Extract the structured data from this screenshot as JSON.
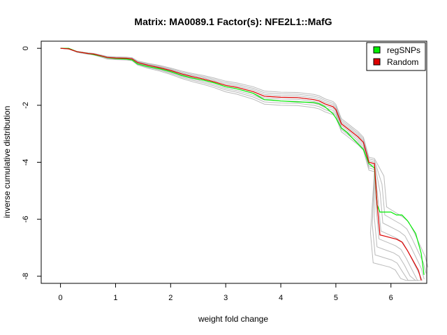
{
  "chart_data": {
    "type": "line",
    "title": "Matrix: MA0089.1 Factor(s): NFE2L1::MafG",
    "xlabel": "weight fold change",
    "ylabel": "inverse cumulative distribution",
    "xlim": [
      -0.35,
      6.65
    ],
    "ylim": [
      -8.25,
      0.25
    ],
    "xticks": [
      0,
      1,
      2,
      3,
      4,
      5,
      6
    ],
    "yticks": [
      0,
      -2,
      -4,
      -6,
      -8
    ],
    "legend": {
      "position": "top-right",
      "entries": [
        {
          "label": "regSNPs",
          "color": "#00ee00"
        },
        {
          "label": "Random",
          "color": "#dd0000"
        }
      ]
    },
    "band_color": "#bbbbbb",
    "series": [
      {
        "name": "regSNPs",
        "color": "#00ee00",
        "points": [
          [
            0,
            0
          ],
          [
            0.15,
            0
          ],
          [
            0.3,
            -0.12
          ],
          [
            0.5,
            -0.18
          ],
          [
            0.6,
            -0.22
          ],
          [
            0.75,
            -0.28
          ],
          [
            0.85,
            -0.33
          ],
          [
            1.0,
            -0.36
          ],
          [
            1.2,
            -0.38
          ],
          [
            1.3,
            -0.41
          ],
          [
            1.4,
            -0.55
          ],
          [
            1.6,
            -0.65
          ],
          [
            1.8,
            -0.72
          ],
          [
            2.0,
            -0.82
          ],
          [
            2.2,
            -0.95
          ],
          [
            2.4,
            -1.05
          ],
          [
            2.6,
            -1.12
          ],
          [
            2.8,
            -1.22
          ],
          [
            3.0,
            -1.35
          ],
          [
            3.2,
            -1.42
          ],
          [
            3.5,
            -1.58
          ],
          [
            3.7,
            -1.8
          ],
          [
            3.85,
            -1.82
          ],
          [
            4.0,
            -1.85
          ],
          [
            4.3,
            -1.88
          ],
          [
            4.6,
            -1.9
          ],
          [
            4.7,
            -1.95
          ],
          [
            4.8,
            -2.05
          ],
          [
            4.95,
            -2.3
          ],
          [
            5.0,
            -2.45
          ],
          [
            5.1,
            -2.8
          ],
          [
            5.2,
            -2.95
          ],
          [
            5.3,
            -3.15
          ],
          [
            5.4,
            -3.35
          ],
          [
            5.5,
            -3.55
          ],
          [
            5.6,
            -4.05
          ],
          [
            5.7,
            -4.2
          ],
          [
            5.75,
            -5.5
          ],
          [
            5.8,
            -5.75
          ],
          [
            5.9,
            -5.75
          ],
          [
            6.0,
            -5.75
          ],
          [
            6.1,
            -5.85
          ],
          [
            6.2,
            -5.85
          ],
          [
            6.3,
            -6.05
          ],
          [
            6.45,
            -6.5
          ],
          [
            6.55,
            -7.2
          ],
          [
            6.6,
            -7.95
          ]
        ]
      },
      {
        "name": "Random",
        "color": "#dd0000",
        "points": [
          [
            0,
            0
          ],
          [
            0.15,
            -0.02
          ],
          [
            0.3,
            -0.12
          ],
          [
            0.5,
            -0.18
          ],
          [
            0.6,
            -0.2
          ],
          [
            0.75,
            -0.27
          ],
          [
            0.85,
            -0.32
          ],
          [
            1.0,
            -0.34
          ],
          [
            1.2,
            -0.35
          ],
          [
            1.3,
            -0.37
          ],
          [
            1.4,
            -0.5
          ],
          [
            1.6,
            -0.6
          ],
          [
            1.8,
            -0.68
          ],
          [
            2.0,
            -0.78
          ],
          [
            2.2,
            -0.9
          ],
          [
            2.4,
            -1.0
          ],
          [
            2.6,
            -1.08
          ],
          [
            2.8,
            -1.18
          ],
          [
            3.0,
            -1.3
          ],
          [
            3.2,
            -1.37
          ],
          [
            3.5,
            -1.52
          ],
          [
            3.7,
            -1.68
          ],
          [
            3.85,
            -1.7
          ],
          [
            4.0,
            -1.72
          ],
          [
            4.3,
            -1.73
          ],
          [
            4.6,
            -1.8
          ],
          [
            4.7,
            -1.85
          ],
          [
            4.8,
            -1.95
          ],
          [
            4.95,
            -2.05
          ],
          [
            5.0,
            -2.15
          ],
          [
            5.1,
            -2.65
          ],
          [
            5.2,
            -2.8
          ],
          [
            5.3,
            -2.95
          ],
          [
            5.4,
            -3.1
          ],
          [
            5.5,
            -3.3
          ],
          [
            5.6,
            -4.0
          ],
          [
            5.7,
            -4.05
          ],
          [
            5.75,
            -5.5
          ],
          [
            5.8,
            -6.55
          ],
          [
            5.9,
            -6.6
          ],
          [
            6.0,
            -6.65
          ],
          [
            6.1,
            -6.7
          ],
          [
            6.2,
            -6.8
          ],
          [
            6.3,
            -7.1
          ],
          [
            6.4,
            -7.45
          ],
          [
            6.5,
            -7.8
          ],
          [
            6.55,
            -8.15
          ]
        ]
      }
    ]
  }
}
